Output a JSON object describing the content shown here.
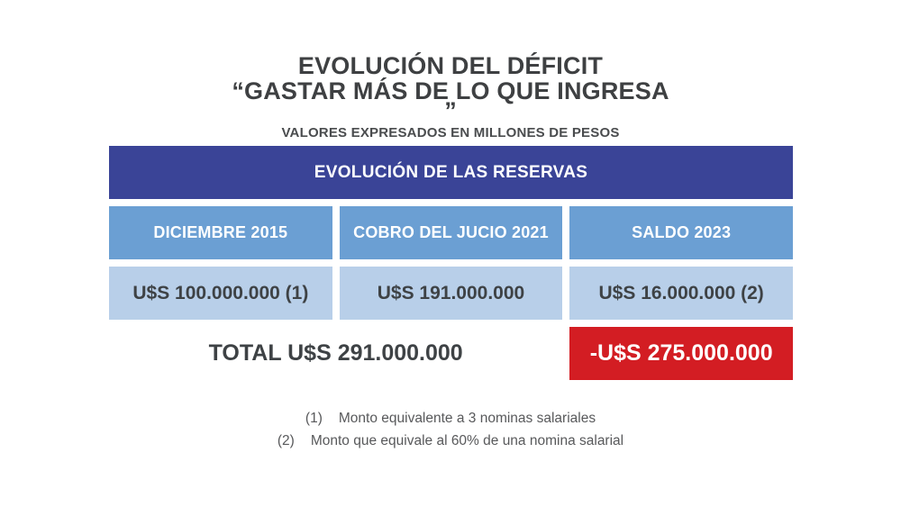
{
  "title": {
    "line1": "EVOLUCIÓN DEL DÉFICIT",
    "line2": "“GASTAR MÁS DE LO QUE INGRESA",
    "line3": "”",
    "subtitle": "VALORES EXPRESADOS EN MILLONES DE PESOS"
  },
  "table": {
    "header": "EVOLUCIÓN DE LAS RESERVAS",
    "columns": [
      {
        "label": "DICIEMBRE 2015",
        "value": "U$S 100.000.000 (1)"
      },
      {
        "label": "COBRO DEL JUCIO 2021",
        "value": "U$S 191.000.000"
      },
      {
        "label": "SALDO 2023",
        "value": "U$S 16.000.000 (2)"
      }
    ],
    "total_label": "TOTAL U$S 291.000.000",
    "deficit_label": "-U$S 275.000.000"
  },
  "footnotes": [
    {
      "marker": "(1)",
      "text": "Monto equivalente a 3 nominas salariales"
    },
    {
      "marker": "(2)",
      "text": "Monto que equivale al 60% de una nomina salarial"
    }
  ],
  "colors": {
    "header_navy": "#3a4497",
    "column_blue": "#6b9fd3",
    "value_light_blue": "#b8cfe9",
    "deficit_red": "#d31d23",
    "text_dark": "#3e4042",
    "footnote_gray": "#58595b"
  },
  "chart_data": {
    "type": "table",
    "title": "EVOLUCIÓN DEL DÉFICIT “GASTAR MÁS DE LO QUE INGRESA”",
    "subtitle": "VALORES EXPRESADOS EN MILLONES DE PESOS",
    "table_title": "EVOLUCIÓN DE LAS RESERVAS",
    "categories": [
      "DICIEMBRE 2015",
      "COBRO DEL JUCIO 2021",
      "SALDO 2023"
    ],
    "values": [
      100000000,
      191000000,
      16000000
    ],
    "value_labels": [
      "U$S 100.000.000 (1)",
      "U$S 191.000.000",
      "U$S 16.000.000 (2)"
    ],
    "total": 291000000,
    "total_label": "TOTAL U$S 291.000.000",
    "deficit": -275000000,
    "deficit_label": "-U$S 275.000.000",
    "footnotes": [
      "(1) Monto equivalente a 3 nominas salariales",
      "(2) Monto que equivale al 60% de una nomina salarial"
    ]
  }
}
